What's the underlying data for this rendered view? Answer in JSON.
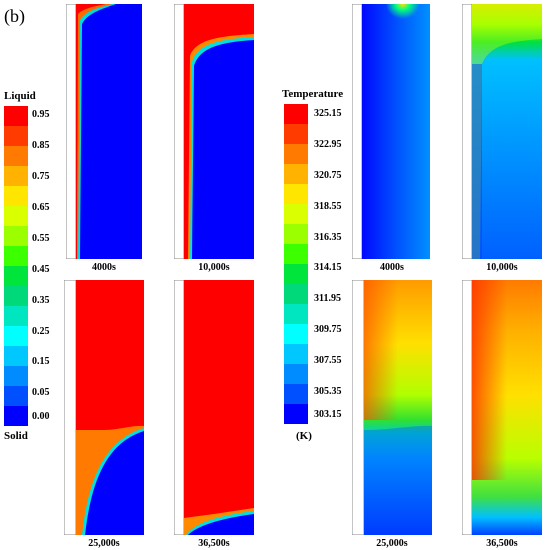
{
  "figure_label": "(b)",
  "liquid_legend": {
    "title_top": "Liquid",
    "title_bottom": "Solid",
    "ticks": [
      "0.95",
      "0.85",
      "0.75",
      "0.65",
      "0.55",
      "0.45",
      "0.35",
      "0.25",
      "0.15",
      "0.05",
      "0.00"
    ],
    "colors": [
      "#ff0000",
      "#ff3b00",
      "#ff7a00",
      "#ffb300",
      "#ffe600",
      "#d9ff00",
      "#9cff00",
      "#3cff00",
      "#00e53c",
      "#00d97a",
      "#00e6c0",
      "#00ffff",
      "#00c8ff",
      "#008cff",
      "#0050ff",
      "#0000ff"
    ]
  },
  "temp_legend": {
    "title": "Temperature",
    "unit": "(K)",
    "ticks": [
      "325.15",
      "322.95",
      "320.75",
      "318.55",
      "316.35",
      "314.15",
      "311.95",
      "309.75",
      "307.55",
      "305.35",
      "303.15"
    ]
  },
  "captions": {
    "liquid_top": [
      "4000s",
      "10,000s"
    ],
    "liquid_bottom": [
      "25,000s",
      "36,500s"
    ],
    "temp_top": [
      "4000s",
      "10,000s"
    ],
    "temp_bottom": [
      "25,000s",
      "36,500s"
    ]
  }
}
